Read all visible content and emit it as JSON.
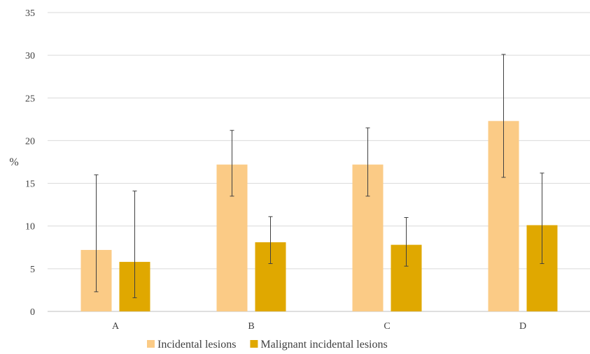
{
  "chart_data": {
    "type": "bar",
    "title": "",
    "xlabel": "",
    "ylabel": "%",
    "ylim": [
      0,
      35
    ],
    "yticks": [
      0,
      5,
      10,
      15,
      20,
      25,
      30,
      35
    ],
    "categories": [
      "A",
      "B",
      "C",
      "D"
    ],
    "grid": "horizontal",
    "legend_position": "bottom",
    "series": [
      {
        "name": "Incidental lesions",
        "color": "#FBCB86",
        "values": [
          7.2,
          17.2,
          17.2,
          22.3
        ],
        "error_low": [
          2.3,
          13.5,
          13.5,
          15.7
        ],
        "error_high": [
          16.0,
          21.2,
          21.5,
          30.1
        ]
      },
      {
        "name": "Malignant incidental lesions",
        "color": "#E0A800",
        "values": [
          5.8,
          8.1,
          7.8,
          10.1
        ],
        "error_low": [
          1.6,
          5.6,
          5.3,
          5.6
        ],
        "error_high": [
          14.1,
          11.1,
          11.0,
          16.2
        ]
      }
    ]
  }
}
